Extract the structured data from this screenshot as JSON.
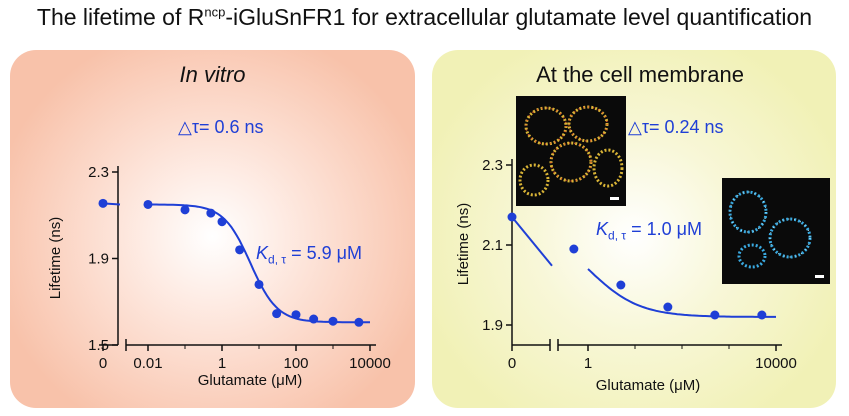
{
  "title": {
    "prefix": "The lifetime of R",
    "superscript": "ncp",
    "suffix": "-iGluSnFR1 for extracellular glutamate level quantification"
  },
  "panels": {
    "left": {
      "title": "In vitro",
      "delta": "△τ= 0.6 ns",
      "kd_symbol": "K",
      "kd_sub": "d, τ",
      "kd_value": " = 5.9 μM"
    },
    "right": {
      "title": "At the cell membrane",
      "delta": "△τ= 0.24 ns",
      "kd_symbol": "K",
      "kd_sub": "d, τ",
      "kd_value": " = 1.0 μM"
    }
  },
  "colors": {
    "series": "#1f3fd6",
    "left_panel": "#f8c2aa",
    "right_panel": "#f1f1b6"
  },
  "images": [
    {
      "name": "cell-membrane-micrograph-yellow",
      "description": "micrograph"
    },
    {
      "name": "cell-membrane-micrograph-blue",
      "description": "micrograph"
    }
  ],
  "chart_data": [
    {
      "type": "scatter",
      "xlabel": "Glutamate (μM)",
      "ylabel": "Lifetime (ns)",
      "xscale": "log with broken axis at zero",
      "ylim": [
        1.5,
        2.3
      ],
      "yticks": [
        "1.5",
        "1.9",
        "2.3"
      ],
      "xticks": [
        "0",
        "0.01",
        "1",
        "100",
        "10000"
      ],
      "zero_point": {
        "x": 0,
        "y": 2.155
      },
      "series": [
        {
          "x": [
            0.01,
            0.1,
            0.5,
            1,
            3,
            10,
            30,
            100,
            300,
            1000,
            5000
          ],
          "y": [
            2.15,
            2.125,
            2.11,
            2.07,
            1.94,
            1.78,
            1.645,
            1.64,
            1.62,
            1.61,
            1.605
          ]
        }
      ],
      "fit": {
        "top": 2.15,
        "bottom": 1.605,
        "kd": 5.9,
        "hill": 1.2
      }
    },
    {
      "type": "scatter",
      "xlabel": "Glutamate (μM)",
      "ylabel": "Lifetime (ns)",
      "xscale": "log with broken axis at zero",
      "ylim": [
        1.85,
        2.3
      ],
      "yticks": [
        "1.9",
        "2.1",
        "2.3"
      ],
      "xticks": [
        "0",
        "1",
        "10000"
      ],
      "zero_point": {
        "x": 0,
        "y": 2.17
      },
      "series": [
        {
          "x": [
            0.5,
            5,
            50,
            500,
            5000
          ],
          "y": [
            2.09,
            2.0,
            1.945,
            1.925,
            1.925
          ]
        }
      ],
      "fit": {
        "top": 2.16,
        "bottom": 1.92,
        "kd": 1.0,
        "hill": 0.8
      }
    }
  ]
}
